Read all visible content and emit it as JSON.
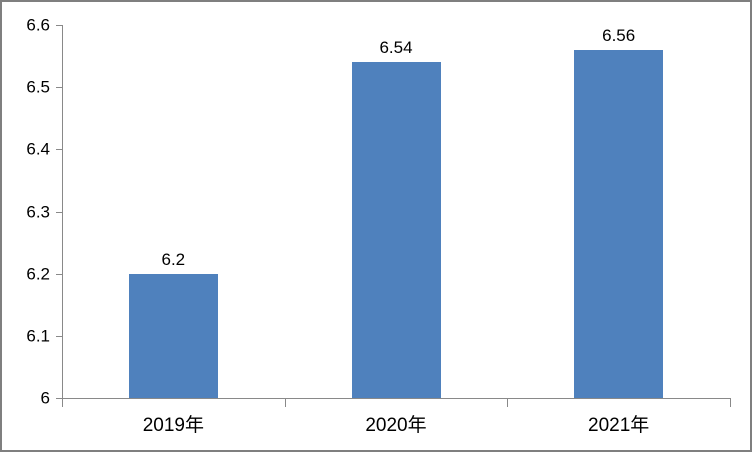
{
  "chart_data": {
    "type": "bar",
    "categories": [
      "2019年",
      "2020年",
      "2021年"
    ],
    "values": [
      6.2,
      6.54,
      6.56
    ],
    "value_labels": [
      "6.2",
      "6.54",
      "6.56"
    ],
    "title": "",
    "xlabel": "",
    "ylabel": "",
    "ylim": [
      6,
      6.6
    ],
    "ytick_step": 0.1,
    "ytick_labels": [
      "6",
      "6.1",
      "6.2",
      "6.3",
      "6.4",
      "6.5",
      "6.6"
    ],
    "grid": false,
    "legend": "none",
    "colors": {
      "bar_fill": "#4F81BD",
      "axis_line": "#898989",
      "frame_border": "#7F7F7F",
      "text": "#000000"
    }
  }
}
